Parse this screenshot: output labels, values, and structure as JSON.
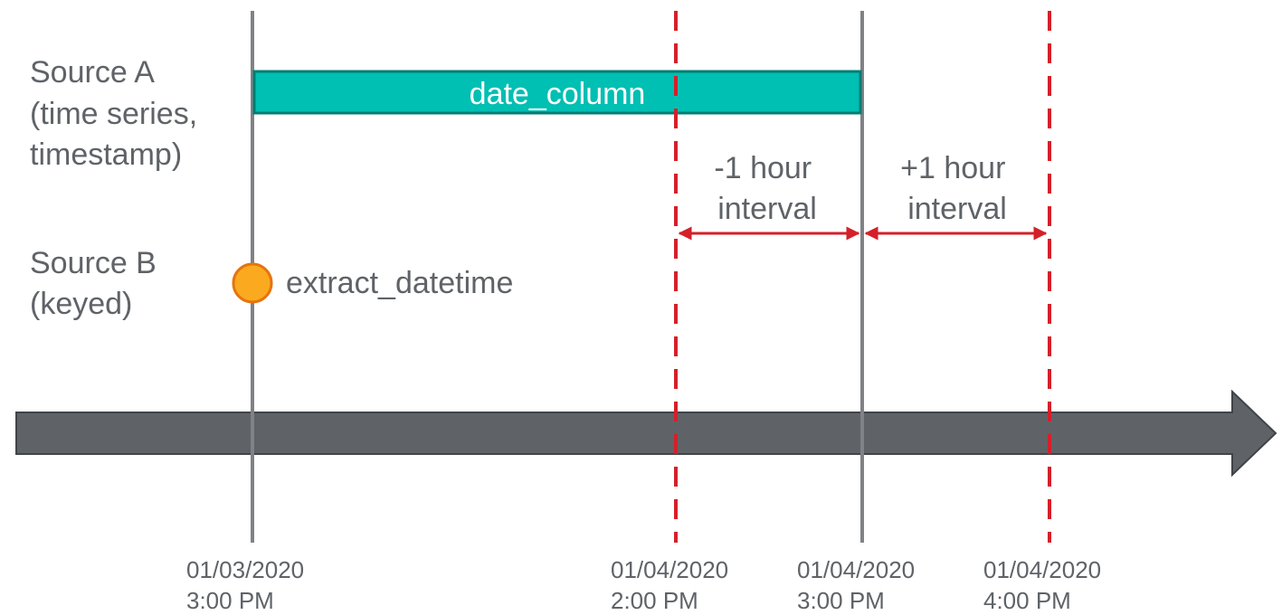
{
  "rows": {
    "source_a": [
      "Source A",
      "(time series,",
      "timestamp)"
    ],
    "source_b": [
      "Source B",
      "(keyed)"
    ]
  },
  "bar_label": "date_column",
  "point_label": "extract_datetime",
  "intervals": {
    "minus": [
      "-1 hour",
      "interval"
    ],
    "plus": [
      "+1 hour",
      "interval"
    ]
  },
  "ticks": [
    {
      "date": "01/03/2020",
      "time": "3:00 PM"
    },
    {
      "date": "01/04/2020",
      "time": "2:00 PM"
    },
    {
      "date": "01/04/2020",
      "time": "3:00 PM"
    },
    {
      "date": "01/04/2020",
      "time": "4:00 PM"
    }
  ],
  "colors": {
    "text": "#5f6368",
    "bar_fill": "#00bfb3",
    "bar_stroke": "#017d73",
    "point_fill": "#fbaa1f",
    "point_stroke": "#e6740d",
    "interval": "#d4202a",
    "axis": "#5f6368",
    "solid_line": "#808285"
  }
}
